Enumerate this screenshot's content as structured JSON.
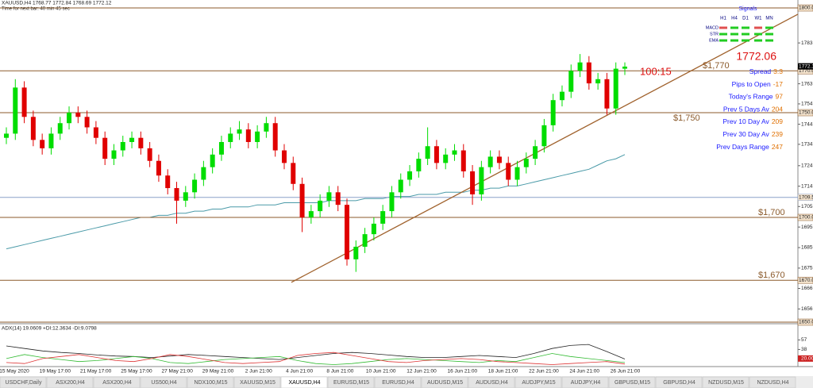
{
  "header": {
    "symbol_line": "XAUUSD,H4  1768.77 1772.84 1768.69 1772.12",
    "timer": "Time for next bar: 40 min 45 sec"
  },
  "chart_data": {
    "type": "candlestick",
    "up_color": "#00dd00",
    "down_color": "#e00000",
    "candles": [
      [
        1738,
        1743,
        1735,
        1740
      ],
      [
        1740,
        1766,
        1737,
        1762
      ],
      [
        1762,
        1765,
        1745,
        1748
      ],
      [
        1748,
        1751,
        1734,
        1737
      ],
      [
        1737,
        1740,
        1730,
        1733
      ],
      [
        1733,
        1743,
        1730,
        1740
      ],
      [
        1740,
        1748,
        1737,
        1745
      ],
      [
        1745,
        1753,
        1742,
        1750
      ],
      [
        1750,
        1753,
        1745,
        1748
      ],
      [
        1748,
        1751,
        1740,
        1743
      ],
      [
        1743,
        1746,
        1735,
        1738
      ],
      [
        1738,
        1741,
        1725,
        1728
      ],
      [
        1728,
        1735,
        1725,
        1732
      ],
      [
        1732,
        1739,
        1729,
        1736
      ],
      [
        1736,
        1741,
        1733,
        1738
      ],
      [
        1738,
        1741,
        1730,
        1733
      ],
      [
        1733,
        1736,
        1724,
        1727
      ],
      [
        1727,
        1730,
        1717,
        1720
      ],
      [
        1720,
        1723,
        1711,
        1714
      ],
      [
        1714,
        1717,
        1697,
        1708
      ],
      [
        1708,
        1715,
        1705,
        1712
      ],
      [
        1712,
        1721,
        1709,
        1718
      ],
      [
        1718,
        1727,
        1715,
        1724
      ],
      [
        1724,
        1733,
        1721,
        1730
      ],
      [
        1730,
        1739,
        1727,
        1736
      ],
      [
        1736,
        1743,
        1733,
        1740
      ],
      [
        1740,
        1746,
        1737,
        1742
      ],
      [
        1742,
        1745,
        1733,
        1736
      ],
      [
        1736,
        1744,
        1733,
        1741
      ],
      [
        1741,
        1748,
        1738,
        1745
      ],
      [
        1745,
        1748,
        1729,
        1732
      ],
      [
        1732,
        1735,
        1723,
        1726
      ],
      [
        1726,
        1729,
        1713,
        1716
      ],
      [
        1716,
        1719,
        1693,
        1700
      ],
      [
        1700,
        1706,
        1697,
        1703
      ],
      [
        1703,
        1711,
        1700,
        1708
      ],
      [
        1708,
        1715,
        1705,
        1712
      ],
      [
        1712,
        1715,
        1703,
        1706
      ],
      [
        1706,
        1709,
        1677,
        1680
      ],
      [
        1680,
        1689,
        1674,
        1686
      ],
      [
        1686,
        1695,
        1683,
        1692
      ],
      [
        1692,
        1700,
        1689,
        1697
      ],
      [
        1697,
        1706,
        1694,
        1703
      ],
      [
        1703,
        1715,
        1700,
        1712
      ],
      [
        1712,
        1721,
        1709,
        1718
      ],
      [
        1718,
        1725,
        1715,
        1722
      ],
      [
        1722,
        1731,
        1719,
        1728
      ],
      [
        1728,
        1743,
        1725,
        1734
      ],
      [
        1734,
        1737,
        1723,
        1726
      ],
      [
        1726,
        1733,
        1723,
        1730
      ],
      [
        1730,
        1735,
        1727,
        1732
      ],
      [
        1732,
        1735,
        1719,
        1722
      ],
      [
        1722,
        1725,
        1706,
        1711
      ],
      [
        1711,
        1727,
        1708,
        1724
      ],
      [
        1724,
        1732,
        1721,
        1729
      ],
      [
        1729,
        1732,
        1723,
        1726
      ],
      [
        1726,
        1729,
        1715,
        1718
      ],
      [
        1718,
        1727,
        1715,
        1724
      ],
      [
        1724,
        1731,
        1721,
        1728
      ],
      [
        1728,
        1737,
        1725,
        1734
      ],
      [
        1734,
        1747,
        1731,
        1744
      ],
      [
        1744,
        1759,
        1741,
        1756
      ],
      [
        1756,
        1763,
        1753,
        1760
      ],
      [
        1760,
        1773,
        1757,
        1770
      ],
      [
        1770,
        1778,
        1767,
        1774
      ],
      [
        1774,
        1777,
        1761,
        1764
      ],
      [
        1764,
        1769,
        1761,
        1766
      ],
      [
        1766,
        1769,
        1749,
        1752
      ],
      [
        1752,
        1774,
        1749,
        1771
      ],
      [
        1771,
        1774,
        1768,
        1772
      ]
    ],
    "ma": {
      "color": "#4a9aa8",
      "values": [
        1685,
        1686,
        1687,
        1688,
        1689,
        1690,
        1691,
        1692,
        1693,
        1694,
        1695,
        1696,
        1697,
        1698,
        1699,
        1700,
        1700,
        1701,
        1701,
        1702,
        1702,
        1703,
        1703,
        1704,
        1704,
        1705,
        1705,
        1705,
        1706,
        1706,
        1706,
        1707,
        1707,
        1707,
        1707,
        1707,
        1708,
        1708,
        1708,
        1708,
        1709,
        1709,
        1709,
        1710,
        1710,
        1710,
        1711,
        1711,
        1711,
        1712,
        1712,
        1712,
        1713,
        1713,
        1714,
        1714,
        1715,
        1715,
        1716,
        1717,
        1718,
        1719,
        1720,
        1721,
        1722,
        1723,
        1725,
        1727,
        1728,
        1730
      ]
    },
    "trendline": {
      "color": "#a0622d",
      "start": 1669,
      "end": 1797
    },
    "levels": [
      {
        "price": 1800,
        "tag": "1800.00",
        "color": "#8b5a2b"
      },
      {
        "price": 1770,
        "tag": "1770.00",
        "label": "$1,770",
        "color": "#8b5a2b"
      },
      {
        "price": 1750,
        "tag": "1750.00",
        "label": "$1,750",
        "color": "#8b5a2b"
      },
      {
        "price": 1709.59,
        "tag": "1709.59",
        "color": "#8aa0c8"
      },
      {
        "price": 1700,
        "tag": "1700.00",
        "label": "$1,700",
        "color": "#8b5a2b"
      },
      {
        "price": 1670,
        "tag": "1670.00",
        "label": "$1,670",
        "color": "#8b5a2b"
      },
      {
        "price": 1650,
        "tag": "1650.00",
        "color": "#8b5a2b"
      }
    ],
    "current_price": {
      "value": 1772.12,
      "label": "1772.12"
    },
    "ylim": [
      1650,
      1803.8
    ],
    "yticks": [
      {
        "value": 1783.3,
        "label": "1783.30"
      },
      {
        "value": 1763.8,
        "label": "1763.80"
      },
      {
        "value": 1754.2,
        "label": "1754.20"
      },
      {
        "value": 1744.5,
        "label": "1744.50"
      },
      {
        "value": 1734.9,
        "label": "1734.90"
      },
      {
        "value": 1724.7,
        "label": "1724.70"
      },
      {
        "value": 1714.9,
        "label": "1714.90"
      },
      {
        "value": 1705.2,
        "label": "1705.20"
      },
      {
        "value": 1695.4,
        "label": "1695.40"
      },
      {
        "value": 1685.6,
        "label": "1685.60"
      },
      {
        "value": 1675.8,
        "label": "1675.80"
      },
      {
        "value": 1666.1,
        "label": "1666.10"
      },
      {
        "value": 1656.3,
        "label": "1656.30"
      }
    ],
    "x_labels": [
      "15 May 2020",
      "19 May 17:00",
      "21 May 17:00",
      "25 May 17:00",
      "27 May 21:00",
      "29 May 21:00",
      "2 Jun 21:00",
      "4 Jun 21:00",
      "8 Jun 21:00",
      "10 Jun 21:00",
      "12 Jun 21:00",
      "16 Jun 21:00",
      "18 Jun 21:00",
      "22 Jun 21:00",
      "24 Jun 21:00",
      "26 Jun 21:00"
    ]
  },
  "indicator": {
    "label": "ADX(14) 19.0609 +DI:12.3634 -DI:9.0798",
    "ylim": [
      4,
      86
    ],
    "yticks": [
      57,
      38,
      {
        "value": 20,
        "label": "20.0000"
      }
    ],
    "series": [
      {
        "color": "#222222",
        "values": [
          45,
          40,
          35,
          32,
          30,
          27,
          25,
          24,
          22,
          25,
          28,
          26,
          24,
          22,
          20,
          18,
          22,
          26,
          30,
          32,
          30,
          27,
          24,
          22,
          22,
          24,
          26,
          24,
          22,
          30,
          40,
          46,
          48,
          34,
          19
        ]
      },
      {
        "color": "#33bb33",
        "values": [
          20,
          28,
          22,
          18,
          14,
          16,
          20,
          24,
          20,
          12,
          10,
          14,
          18,
          20,
          22,
          24,
          16,
          10,
          8,
          10,
          14,
          18,
          20,
          18,
          16,
          14,
          12,
          16,
          14,
          22,
          30,
          24,
          20,
          16,
          12
        ]
      },
      {
        "color": "#dd3333",
        "values": [
          12,
          10,
          20,
          24,
          28,
          22,
          16,
          14,
          20,
          28,
          24,
          18,
          12,
          10,
          12,
          14,
          26,
          30,
          32,
          26,
          20,
          14,
          12,
          16,
          18,
          20,
          18,
          14,
          12,
          10,
          8,
          10,
          12,
          14,
          9
        ]
      }
    ]
  },
  "info_panel": {
    "signals_title": "Signals",
    "timeframes": [
      "H1",
      "H4",
      "D1",
      "W1",
      "MN"
    ],
    "rows": [
      {
        "name": "MACD",
        "colors": [
          "#e05050",
          "#22cc22",
          "#22cc22",
          "#e05050",
          "#22cc22"
        ]
      },
      {
        "name": "STR",
        "colors": [
          "#22cc22",
          "#22cc22",
          "#22cc22",
          "#22cc22",
          "#22cc22"
        ]
      },
      {
        "name": "EMA",
        "colors": [
          "#22cc22",
          "#22cc22",
          "#22cc22",
          "#22cc22",
          "#22cc22"
        ]
      }
    ],
    "price": "1772.06",
    "countdown": "100:15",
    "stats": [
      {
        "label": "Spread",
        "value": 3.3
      },
      {
        "label": "Pips to Open",
        "value": -17
      },
      {
        "label": "Today's Range",
        "value": 97
      },
      {
        "label": "Prev 5 Days Av",
        "value": 204
      },
      {
        "label": "Prev 10 Day Av",
        "value": 209
      },
      {
        "label": "Prev 30 Day Av",
        "value": 239
      },
      {
        "label": "Prev Days Range",
        "value": 247
      }
    ]
  },
  "tabs": [
    "USDCHF,Daily",
    "ASX200,H4",
    "ASX200,H4",
    "US500,H4",
    "NDX100,M15",
    "XAUUSD,M15",
    "XAUUSD,H4",
    "EURUSD,M15",
    "EURUSD,H4",
    "AUDUSD,M15",
    "AUDUSD,H4",
    "AUDJPY,M15",
    "AUDJPY,H4",
    "GBPUSD,M15",
    "GBPUSD,H4",
    "NZDUSD,M15",
    "NZDUSD,H4"
  ],
  "active_tab": 6
}
